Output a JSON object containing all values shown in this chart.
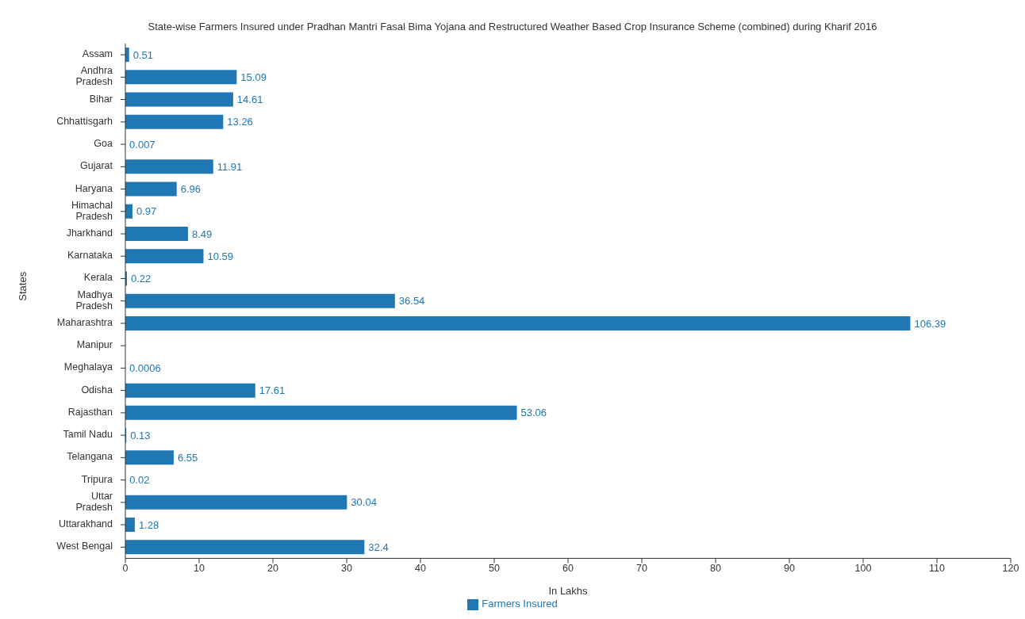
{
  "chart_data": {
    "type": "bar",
    "orientation": "horizontal",
    "title": "State-wise Farmers Insured under Pradhan Mantri Fasal Bima Yojana and Restructured Weather Based Crop Insurance Scheme (combined) during Kharif 2016",
    "xlabel": "In Lakhs",
    "ylabel": "States",
    "categories": [
      "Assam",
      "Andhra Pradesh",
      "Bihar",
      "Chhattisgarh",
      "Goa",
      "Gujarat",
      "Haryana",
      "Himachal Pradesh",
      "Jharkhand",
      "Karnataka",
      "Kerala",
      "Madhya Pradesh",
      "Maharashtra",
      "Manipur",
      "Meghalaya",
      "Odisha",
      "Rajasthan",
      "Tamil Nadu",
      "Telangana",
      "Tripura",
      "Uttar Pradesh",
      "Uttarakhand",
      "West Bengal"
    ],
    "series": [
      {
        "name": "Farmers Insured",
        "color": "#1f77b4",
        "values": [
          0.51,
          15.09,
          14.61,
          13.26,
          0.007,
          11.91,
          6.96,
          0.97,
          8.49,
          10.59,
          0.22,
          36.54,
          106.39,
          null,
          0.0006,
          17.61,
          53.06,
          0.13,
          6.55,
          0.02,
          30.04,
          1.28,
          32.4
        ]
      }
    ],
    "xlim": [
      0,
      120
    ],
    "xticks": [
      0,
      10,
      20,
      30,
      40,
      50,
      60,
      70,
      80,
      90,
      100,
      110,
      120
    ],
    "data_labels": true,
    "legend": "bottom"
  }
}
